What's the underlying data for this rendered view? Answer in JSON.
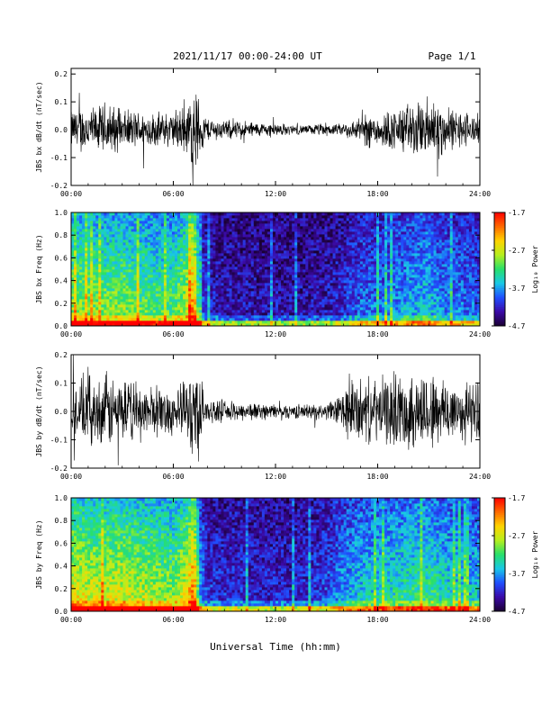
{
  "header": {
    "date_range": "2021/11/17  00:00-24:00 UT",
    "page": "Page 1/1"
  },
  "footer": {
    "xlabel": "Universal Time (hh:mm)"
  },
  "colors": {
    "trace": "#000000",
    "frame": "#000000",
    "colormap": [
      "#1a0033",
      "#3b0aa8",
      "#1f4fff",
      "#19c8e6",
      "#28e06a",
      "#b6ef1e",
      "#ffd400",
      "#ff6a00",
      "#ff0000"
    ]
  },
  "chart_data": [
    {
      "type": "line",
      "title": "",
      "ylabel": "JBS bx dB/dt (nT/sec)",
      "xlabel": "",
      "x_tick_labels": [
        "00:00",
        "06:00",
        "12:00",
        "18:00",
        "24:00"
      ],
      "xlim": [
        0,
        24
      ],
      "ylim": [
        -0.2,
        0.22
      ],
      "y_tick_labels": [
        "0.2",
        "0.1",
        "0.0",
        "-0.1",
        "-0.2"
      ],
      "y_ticks": [
        0.2,
        0.1,
        0.0,
        -0.1,
        -0.2
      ],
      "series": [
        {
          "hour": [
            0,
            0.5,
            1,
            1.5,
            2,
            3,
            4,
            5,
            6,
            6.5,
            7,
            7.3,
            7.6,
            8,
            9,
            10,
            11,
            12,
            13,
            14,
            15,
            15.5,
            16,
            17,
            17.5,
            18,
            19,
            19.5,
            20,
            20.5,
            21,
            21.5,
            22,
            23,
            24
          ],
          "envelope": [
            0.08,
            0.1,
            0.1,
            0.09,
            0.12,
            0.08,
            0.08,
            0.07,
            0.08,
            0.1,
            0.13,
            0.2,
            0.1,
            0.05,
            0.04,
            0.04,
            0.03,
            0.03,
            0.02,
            0.02,
            0.03,
            0.02,
            0.03,
            0.05,
            0.08,
            0.07,
            0.09,
            0.1,
            0.12,
            0.11,
            0.15,
            0.14,
            0.09,
            0.08,
            0.06
          ]
        }
      ]
    },
    {
      "type": "heatmap",
      "title": "",
      "ylabel": "JBS bx Freq (Hz)",
      "xlabel": "",
      "x_tick_labels": [
        "00:00",
        "06:00",
        "12:00",
        "18:00",
        "24:00"
      ],
      "xlim": [
        0,
        24
      ],
      "ylim": [
        0,
        1.0
      ],
      "y_tick_labels": [
        "1.0",
        "0.8",
        "0.6",
        "0.4",
        "0.2",
        "0.0"
      ],
      "y_ticks": [
        1.0,
        0.8,
        0.6,
        0.4,
        0.2,
        0.0
      ],
      "colorbar": {
        "label": "Log₁₀ Power",
        "range": [
          -4.7,
          -1.7
        ],
        "tick_labels": [
          "-1.7",
          "-2.7",
          "-3.7",
          "-4.7"
        ],
        "ticks": [
          -1.7,
          -2.7,
          -3.7,
          -4.7
        ]
      },
      "activity": {
        "hour": [
          0,
          1,
          2,
          3,
          4,
          5,
          6,
          6.8,
          7.2,
          7.6,
          8,
          9,
          10,
          11,
          12,
          13,
          14,
          15,
          16,
          17,
          18,
          19,
          20,
          21,
          22,
          23,
          24
        ],
        "level": [
          0.65,
          0.62,
          0.6,
          0.62,
          0.58,
          0.55,
          0.55,
          0.7,
          0.95,
          0.3,
          0.18,
          0.16,
          0.15,
          0.14,
          0.14,
          0.13,
          0.14,
          0.15,
          0.2,
          0.28,
          0.3,
          0.33,
          0.38,
          0.4,
          0.32,
          0.3,
          0.28
        ]
      }
    },
    {
      "type": "line",
      "title": "",
      "ylabel": "JBS by dB/dt (nT/sec)",
      "xlabel": "",
      "x_tick_labels": [
        "00:00",
        "06:00",
        "12:00",
        "18:00",
        "24:00"
      ],
      "xlim": [
        0,
        24
      ],
      "ylim": [
        -0.2,
        0.2
      ],
      "y_tick_labels": [
        "0.2",
        "0.1",
        "0.0",
        "-0.1",
        "-0.2"
      ],
      "y_ticks": [
        0.2,
        0.1,
        0.0,
        -0.1,
        -0.2
      ],
      "series": [
        {
          "hour": [
            0,
            0.5,
            1,
            1.5,
            2,
            3,
            4,
            5,
            6,
            6.5,
            7,
            7.3,
            7.6,
            8,
            9,
            10,
            11,
            12,
            13,
            14,
            15,
            15.5,
            16,
            16.5,
            17,
            18,
            19,
            20,
            21,
            22,
            23,
            24
          ],
          "envelope": [
            0.1,
            0.13,
            0.15,
            0.12,
            0.16,
            0.13,
            0.12,
            0.1,
            0.1,
            0.11,
            0.16,
            0.25,
            0.14,
            0.05,
            0.04,
            0.04,
            0.035,
            0.03,
            0.03,
            0.03,
            0.035,
            0.05,
            0.1,
            0.14,
            0.13,
            0.13,
            0.15,
            0.16,
            0.17,
            0.14,
            0.13,
            0.12
          ]
        }
      ]
    },
    {
      "type": "heatmap",
      "title": "",
      "ylabel": "JBS by Freq (Hz)",
      "xlabel": "",
      "x_tick_labels": [
        "00:00",
        "06:00",
        "12:00",
        "18:00",
        "24:00"
      ],
      "xlim": [
        0,
        24
      ],
      "ylim": [
        0,
        1.0
      ],
      "y_tick_labels": [
        "1.0",
        "0.8",
        "0.6",
        "0.4",
        "0.2",
        "0.0"
      ],
      "y_ticks": [
        1.0,
        0.8,
        0.6,
        0.4,
        0.2,
        0.0
      ],
      "colorbar": {
        "label": "Log₁₀ Power",
        "range": [
          -4.7,
          -1.7
        ],
        "tick_labels": [
          "-1.7",
          "-2.7",
          "-3.7",
          "-4.7"
        ],
        "ticks": [
          -1.7,
          -2.7,
          -3.7,
          -4.7
        ]
      },
      "activity": {
        "hour": [
          0,
          1,
          2,
          3,
          4,
          5,
          6,
          6.8,
          7.2,
          7.6,
          8,
          9,
          10,
          11,
          12,
          13,
          14,
          15,
          16,
          17,
          18,
          19,
          20,
          21,
          22,
          23,
          24
        ],
        "level": [
          0.75,
          0.72,
          0.7,
          0.72,
          0.68,
          0.66,
          0.62,
          0.75,
          0.97,
          0.35,
          0.22,
          0.2,
          0.2,
          0.18,
          0.18,
          0.18,
          0.2,
          0.25,
          0.35,
          0.42,
          0.45,
          0.47,
          0.5,
          0.52,
          0.45,
          0.42,
          0.4
        ]
      }
    }
  ]
}
